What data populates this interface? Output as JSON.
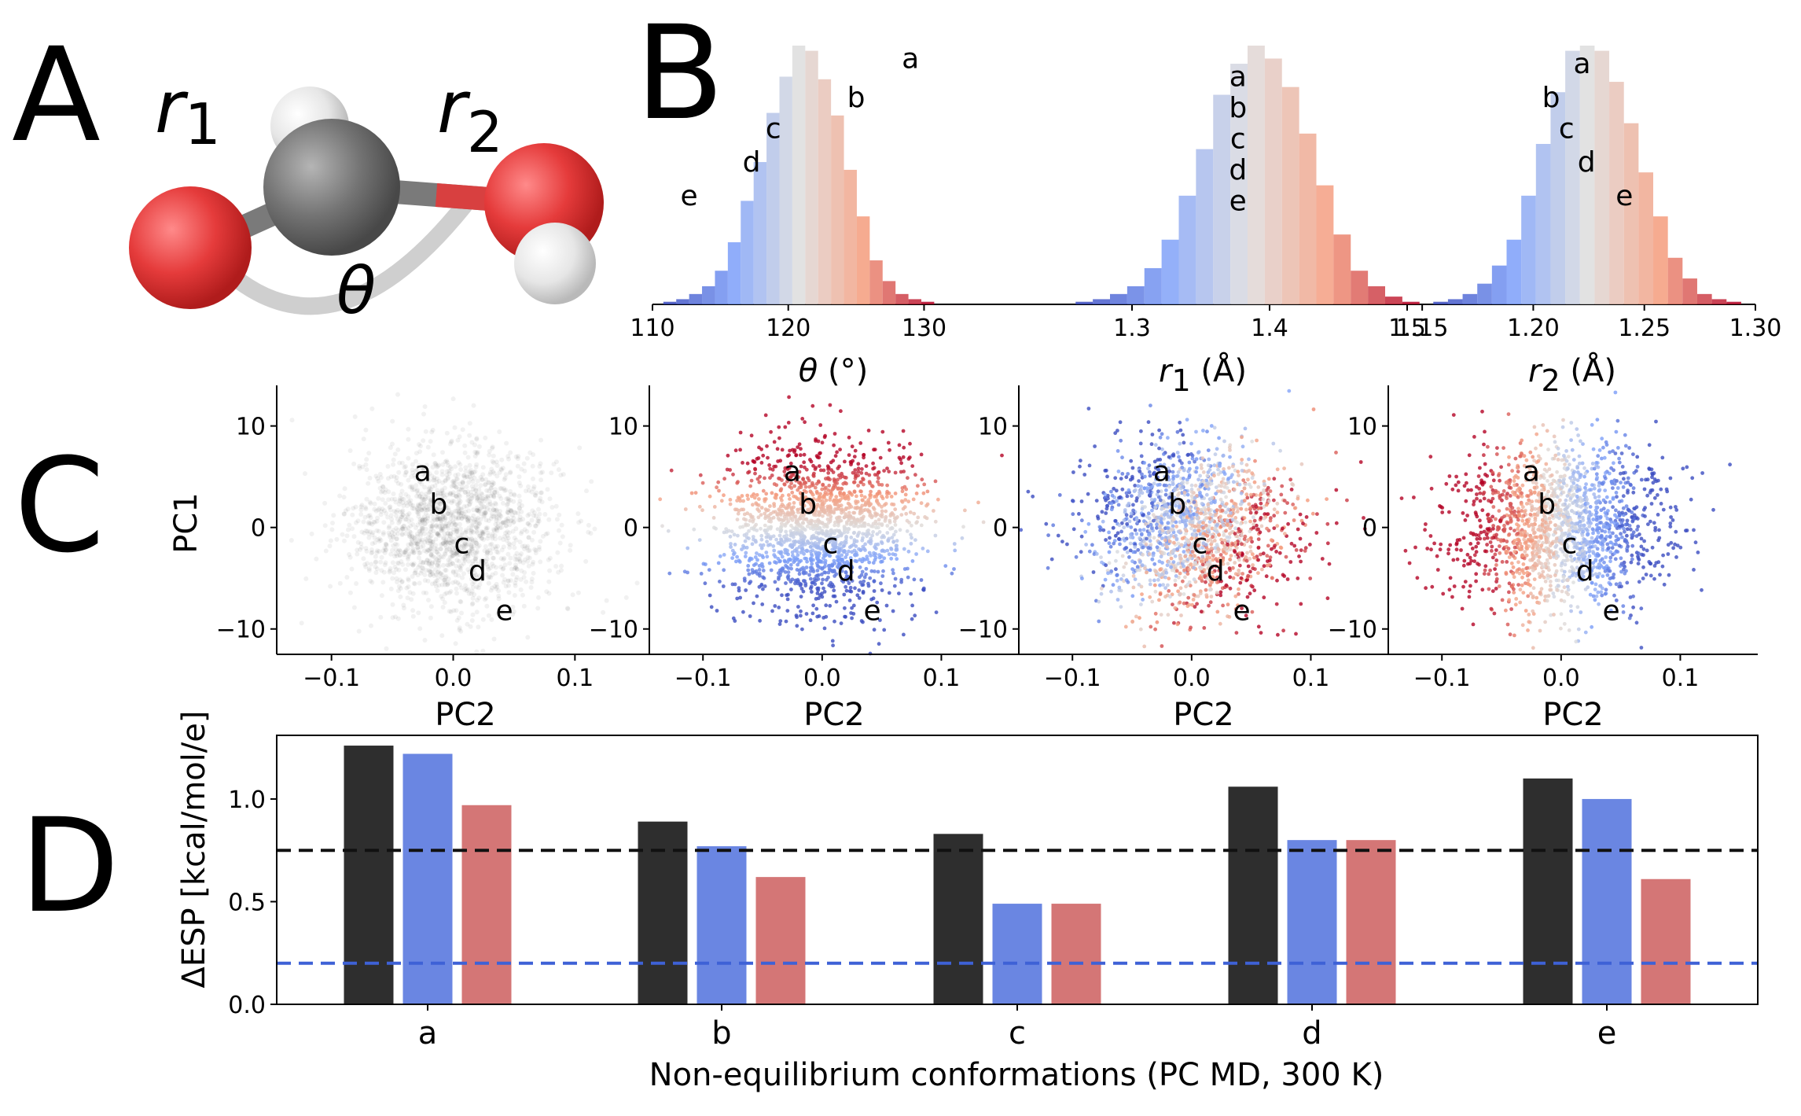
{
  "panel_labels": {
    "a": "A",
    "b": "B",
    "c": "C",
    "d": "D"
  },
  "molecule": {
    "r1": {
      "sym": "r",
      "sub": "1"
    },
    "r2": {
      "sym": "r",
      "sub": "2"
    },
    "theta": "θ"
  },
  "colors": {
    "black_bar": "#2e2e2e",
    "blue_bar": "#6a86e2",
    "red_bar": "#d47676",
    "black_dash": "#111111",
    "blue_dash": "#3e61d6",
    "oxygen": "#e03030",
    "carbon": "#6e6e6e",
    "hydrogen": "#e4e4e4"
  },
  "chart_data": [
    {
      "type": "bar",
      "id": "B-theta",
      "title": "θ (°)",
      "xlabel": "θ (°)",
      "x_range": [
        110,
        132
      ],
      "ticks": [
        110,
        120,
        130
      ],
      "tick_labels": [
        "110",
        "120",
        "130"
      ],
      "bin_start": 110.8,
      "bin_width": 0.95,
      "counts": [
        1,
        2,
        4,
        7,
        13,
        24,
        40,
        55,
        74,
        88,
        100,
        98,
        87,
        73,
        52,
        34,
        17,
        9,
        4,
        2,
        1
      ],
      "annotations": [
        {
          "label": "a",
          "x": 129,
          "y": 0.95
        },
        {
          "label": "b",
          "x": 125,
          "y": 0.8
        },
        {
          "label": "c",
          "x": 118.9,
          "y": 0.68
        },
        {
          "label": "d",
          "x": 117.3,
          "y": 0.55
        },
        {
          "label": "e",
          "x": 112.7,
          "y": 0.42
        }
      ]
    },
    {
      "type": "bar",
      "id": "B-r1",
      "title": "r1 (Å)",
      "xlabel": "r1 (Å)",
      "x_range": [
        1.26,
        1.5
      ],
      "ticks": [
        1.3,
        1.4,
        1.5
      ],
      "tick_labels": [
        "1.3",
        "1.4",
        "1.5"
      ],
      "bin_start": 1.259,
      "bin_width": 0.0125,
      "counts": [
        1,
        2,
        4,
        7,
        14,
        25,
        42,
        60,
        81,
        93,
        100,
        95,
        84,
        66,
        46,
        27,
        13,
        7,
        3,
        1
      ],
      "annotations": [
        {
          "label": "a",
          "x": 1.377,
          "y": 0.88
        },
        {
          "label": "b",
          "x": 1.377,
          "y": 0.76
        },
        {
          "label": "c",
          "x": 1.377,
          "y": 0.64
        },
        {
          "label": "d",
          "x": 1.377,
          "y": 0.52
        },
        {
          "label": "e",
          "x": 1.377,
          "y": 0.4
        }
      ]
    },
    {
      "type": "bar",
      "id": "B-r2",
      "title": "r2 (Å)",
      "xlabel": "r2 (Å)",
      "x_range": [
        1.145,
        1.3
      ],
      "ticks": [
        1.15,
        1.2,
        1.25,
        1.3
      ],
      "tick_labels": [
        "1.15",
        "1.20",
        "1.25",
        "1.30"
      ],
      "bin_start": 1.155,
      "bin_width": 0.0066,
      "counts": [
        1,
        2,
        4,
        8,
        15,
        25,
        42,
        62,
        82,
        98,
        100,
        98,
        86,
        70,
        51,
        34,
        18,
        10,
        4,
        2,
        1
      ],
      "annotations": [
        {
          "label": "a",
          "x": 1.222,
          "y": 0.93
        },
        {
          "label": "b",
          "x": 1.208,
          "y": 0.8
        },
        {
          "label": "c",
          "x": 1.215,
          "y": 0.68
        },
        {
          "label": "d",
          "x": 1.224,
          "y": 0.55
        },
        {
          "label": "e",
          "x": 1.241,
          "y": 0.42
        }
      ]
    },
    {
      "type": "scatter",
      "id": "C-panels",
      "panels": [
        {
          "id": "C1",
          "coloring": "density",
          "show_ylabel": true
        },
        {
          "id": "C2",
          "coloring": "theta"
        },
        {
          "id": "C3",
          "coloring": "r1"
        },
        {
          "id": "C4",
          "coloring": "r2"
        }
      ],
      "xlabel": "PC2",
      "ylabel": "PC1",
      "x_range": [
        -0.145,
        0.165
      ],
      "y_range": [
        -12.5,
        14
      ],
      "x_ticks": [
        -0.1,
        0.0,
        0.1
      ],
      "x_tick_labels": [
        "−0.1",
        "0.0",
        "0.1"
      ],
      "y_ticks": [
        10,
        0,
        -10
      ],
      "y_tick_labels": [
        "10",
        "0",
        "−10"
      ],
      "cloud": {
        "center_x": 0.0,
        "center_y": 0.0,
        "sd_x": 0.042,
        "sd_y": 4.0,
        "n": 1700
      },
      "annotations": [
        {
          "label": "a",
          "x": -0.025,
          "y": 5.5
        },
        {
          "label": "b",
          "x": -0.012,
          "y": 2.3
        },
        {
          "label": "c",
          "x": 0.007,
          "y": -1.6
        },
        {
          "label": "d",
          "x": 0.02,
          "y": -4.3
        },
        {
          "label": "e",
          "x": 0.042,
          "y": -8.2
        }
      ]
    },
    {
      "type": "bar",
      "id": "D",
      "categories": [
        "a",
        "b",
        "c",
        "d",
        "e"
      ],
      "series": [
        {
          "name": "black",
          "values": [
            1.26,
            0.89,
            0.83,
            1.06,
            1.1
          ]
        },
        {
          "name": "blue",
          "values": [
            1.22,
            0.77,
            0.49,
            0.8,
            1.0
          ]
        },
        {
          "name": "red",
          "values": [
            0.97,
            0.62,
            0.49,
            0.8,
            0.61
          ]
        }
      ],
      "hlines": [
        {
          "name": "black-dashed",
          "y": 0.75
        },
        {
          "name": "blue-dashed",
          "y": 0.2
        }
      ],
      "ylim": [
        0,
        1.31
      ],
      "y_ticks": [
        0.0,
        0.5,
        1.0
      ],
      "y_tick_labels": [
        "0.0",
        "0.5",
        "1.0"
      ],
      "ylabel": "ΔESP [kcal/mol/e]",
      "xlabel": "Non-equilibrium conformations (PC MD, 300 K)"
    }
  ]
}
